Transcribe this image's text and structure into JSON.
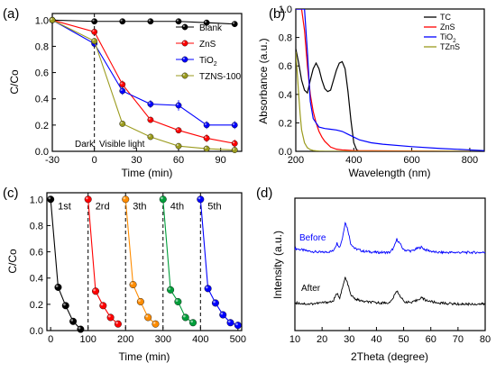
{
  "chart_data": [
    {
      "panel_label": "(a)",
      "type": "line",
      "xlabel": "Time (min)",
      "ylabel": "C/Co",
      "xlim": [
        -30,
        105
      ],
      "ylim": [
        0,
        1.05
      ],
      "xticks": [
        -30,
        0,
        30,
        60,
        90
      ],
      "yticks": [
        0.0,
        0.2,
        0.4,
        0.6,
        0.8,
        1.0
      ],
      "x": [
        -30,
        0,
        20,
        40,
        60,
        80,
        100
      ],
      "series": [
        {
          "name": "Blank",
          "color": "#000000",
          "values": [
            1.0,
            0.99,
            0.99,
            0.99,
            0.99,
            0.98,
            0.97
          ],
          "errors": [
            0.005,
            0.005,
            0.01,
            0.01,
            0.01,
            0.015,
            0.02
          ]
        },
        {
          "name": "ZnS",
          "color": "#ff0000",
          "values": [
            1.0,
            0.91,
            0.51,
            0.24,
            0.16,
            0.1,
            0.06
          ],
          "errors": [
            0.005,
            0.01,
            0.03,
            0.02,
            0.02,
            0.03,
            0.03
          ]
        },
        {
          "name": "TiO",
          "name_sub": "2",
          "color": "#0000ff",
          "values": [
            1.0,
            0.82,
            0.46,
            0.36,
            0.35,
            0.2,
            0.2
          ],
          "errors": [
            0.005,
            0.02,
            0.03,
            0.03,
            0.04,
            0.03,
            0.03
          ]
        },
        {
          "name": "TZNS-100",
          "color": "#9b9b1e",
          "values": [
            1.0,
            0.84,
            0.21,
            0.11,
            0.04,
            0.02,
            0.01
          ],
          "errors": [
            0.005,
            0.02,
            0.02,
            0.015,
            0.01,
            0.01,
            0.01
          ]
        }
      ],
      "divider_x": 0,
      "annotations": [
        "Dark",
        "Visible light"
      ],
      "legend_position": "top-right"
    },
    {
      "panel_label": "(b)",
      "type": "line",
      "xlabel": "Wavelength (nm)",
      "ylabel": "Absorbance (a.u.)",
      "xlim": [
        200,
        850
      ],
      "ylim": [
        0,
        1.0
      ],
      "xticks": [
        200,
        400,
        600,
        800
      ],
      "yticks": [
        0.0,
        0.2,
        0.4,
        0.6,
        0.8,
        1.0
      ],
      "series": [
        {
          "name": "TC",
          "color": "#000000",
          "x": [
            200,
            210,
            220,
            230,
            240,
            250,
            260,
            270,
            280,
            290,
            300,
            310,
            320,
            330,
            340,
            350,
            360,
            370,
            380,
            390,
            400,
            410,
            420,
            440,
            500,
            600,
            800
          ],
          "values": [
            0.72,
            0.62,
            0.5,
            0.43,
            0.41,
            0.5,
            0.58,
            0.62,
            0.58,
            0.5,
            0.44,
            0.42,
            0.43,
            0.5,
            0.57,
            0.62,
            0.63,
            0.58,
            0.42,
            0.22,
            0.06,
            0.01,
            0.0,
            0.0,
            0.0,
            0.0,
            0.0
          ]
        },
        {
          "name": "ZnS",
          "color": "#ff0000",
          "x": [
            200,
            210,
            220,
            230,
            240,
            250,
            260,
            270,
            280,
            290,
            300,
            310,
            320,
            340,
            360,
            400,
            800
          ],
          "values": [
            1.0,
            1.0,
            1.0,
            0.85,
            0.6,
            0.4,
            0.28,
            0.2,
            0.14,
            0.1,
            0.07,
            0.05,
            0.03,
            0.015,
            0.01,
            0.005,
            0.0
          ]
        },
        {
          "name": "TiO",
          "name_sub": "2",
          "color": "#0000ff",
          "x": [
            200,
            210,
            220,
            230,
            240,
            250,
            260,
            280,
            300,
            320,
            340,
            360,
            380,
            400,
            420,
            460,
            500,
            600,
            700,
            800,
            850
          ],
          "values": [
            1.0,
            1.0,
            1.0,
            1.0,
            0.7,
            0.35,
            0.23,
            0.17,
            0.16,
            0.155,
            0.15,
            0.14,
            0.12,
            0.1,
            0.08,
            0.06,
            0.05,
            0.033,
            0.02,
            0.01,
            0.005
          ]
        },
        {
          "name": "TZnS",
          "color": "#9b9b1e",
          "x": [
            200,
            205,
            210,
            215,
            220,
            230,
            240,
            250,
            260,
            280,
            300,
            400,
            800
          ],
          "values": [
            0.7,
            0.55,
            0.4,
            0.26,
            0.15,
            0.06,
            0.025,
            0.012,
            0.006,
            0.002,
            0.0,
            0.0,
            0.0
          ]
        }
      ],
      "legend_position": "top-right"
    },
    {
      "panel_label": "(c)",
      "type": "scatter",
      "xlabel": "Time (min)",
      "ylabel": "C/Co",
      "xlim": [
        -10,
        510
      ],
      "ylim": [
        0,
        1.05
      ],
      "xticks": [
        0,
        100,
        200,
        300,
        400,
        500
      ],
      "yticks": [
        0.0,
        0.2,
        0.4,
        0.6,
        0.8,
        1.0
      ],
      "dividers_x": [
        100,
        200,
        300,
        400
      ],
      "series": [
        {
          "name": "1st",
          "color": "#000000",
          "x": [
            0,
            20,
            40,
            60,
            80
          ],
          "values": [
            1.0,
            0.33,
            0.19,
            0.07,
            0.01
          ]
        },
        {
          "name": "2rd",
          "color": "#ff0000",
          "x": [
            100,
            120,
            140,
            160,
            180
          ],
          "values": [
            1.0,
            0.3,
            0.19,
            0.1,
            0.05
          ]
        },
        {
          "name": "3th",
          "color": "#ff8c00",
          "x": [
            200,
            220,
            240,
            260,
            280
          ],
          "values": [
            1.0,
            0.35,
            0.22,
            0.1,
            0.05
          ]
        },
        {
          "name": "4th",
          "color": "#009e3a",
          "x": [
            300,
            320,
            340,
            360,
            380
          ],
          "values": [
            1.0,
            0.31,
            0.22,
            0.1,
            0.06
          ]
        },
        {
          "name": "5th",
          "color": "#0000ff",
          "x": [
            400,
            420,
            440,
            460,
            480,
            500
          ],
          "values": [
            1.0,
            0.32,
            0.21,
            0.12,
            0.06,
            0.04
          ]
        }
      ]
    },
    {
      "panel_label": "(d)",
      "type": "line",
      "xlabel": "2Theta (degree)",
      "ylabel": "Intensity (a.u.)",
      "xlim": [
        10,
        80
      ],
      "xticks": [
        10,
        20,
        30,
        40,
        50,
        60,
        70,
        80
      ],
      "ylim": [
        0,
        1
      ],
      "series": [
        {
          "name": "Before",
          "color": "#0000ff",
          "baseline": 0.55,
          "x": [
            10,
            15,
            20,
            24,
            25.5,
            26.5,
            27.5,
            28.5,
            29.5,
            30.5,
            32,
            35,
            40,
            45,
            46.5,
            47.5,
            48.5,
            50,
            53,
            55,
            56.5,
            58,
            62,
            70,
            80
          ],
          "values": [
            0.62,
            0.6,
            0.59,
            0.6,
            0.66,
            0.63,
            0.7,
            0.82,
            0.76,
            0.66,
            0.62,
            0.6,
            0.59,
            0.59,
            0.63,
            0.69,
            0.66,
            0.61,
            0.6,
            0.62,
            0.63,
            0.61,
            0.59,
            0.59,
            0.59
          ]
        },
        {
          "name": "After",
          "color": "#000000",
          "baseline": 0.2,
          "x": [
            10,
            15,
            20,
            24,
            25.5,
            26.5,
            27.5,
            28.5,
            29.5,
            30.5,
            32,
            35,
            40,
            45,
            46.5,
            47.5,
            48.5,
            50,
            53,
            55,
            56.5,
            58,
            62,
            70,
            80
          ],
          "values": [
            0.21,
            0.2,
            0.21,
            0.22,
            0.28,
            0.25,
            0.32,
            0.4,
            0.35,
            0.27,
            0.24,
            0.22,
            0.21,
            0.21,
            0.26,
            0.3,
            0.27,
            0.22,
            0.21,
            0.23,
            0.25,
            0.23,
            0.21,
            0.2,
            0.2
          ]
        }
      ]
    }
  ]
}
